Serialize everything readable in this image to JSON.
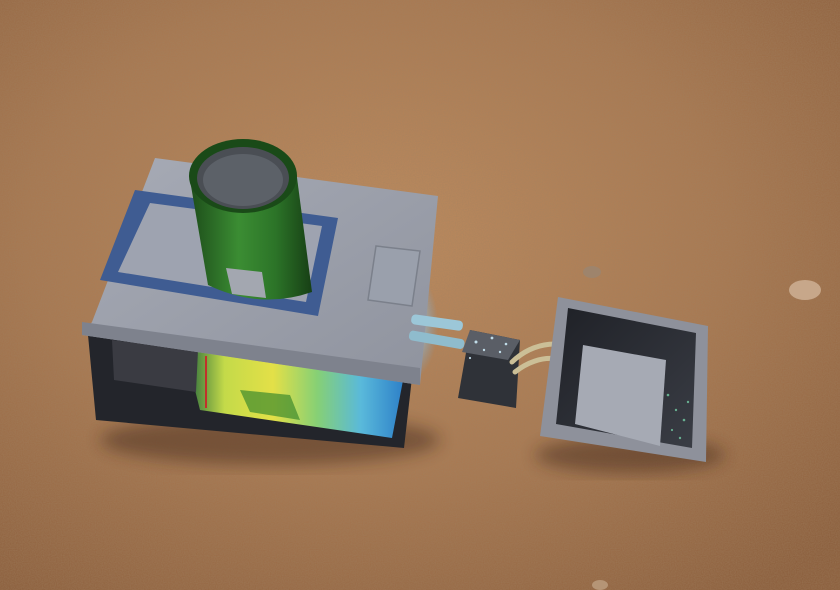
{
  "scene": {
    "subject": "3d-render-water-filtration-model",
    "colors": {
      "ground_light": "#b98457",
      "ground_mid": "#a06e47",
      "ground_dark": "#7f5434",
      "housing_top": "#9ca0ac",
      "housing_top_edge": "#7d818c",
      "frame_blue": "#3e5b8f",
      "cylinder_green": "#2f7a2b",
      "cylinder_dark": "#1f4f1c",
      "tank_dark": "#26282e",
      "tray_grey": "#8d909a",
      "tray_inner": "#2b2d34",
      "pump_dark": "#3a3d44",
      "hose_tan": "#c9bf9a",
      "glow_blue": "#7fd0ff",
      "rainbow": [
        "#2a7b4a",
        "#cfe84a",
        "#f2f24b",
        "#8ee07a",
        "#66c9e8",
        "#2f8fd8"
      ]
    },
    "icons": [
      "sandy-ground",
      "filter-housing",
      "green-cylinder",
      "pump-box",
      "collection-tray",
      "hose"
    ]
  }
}
